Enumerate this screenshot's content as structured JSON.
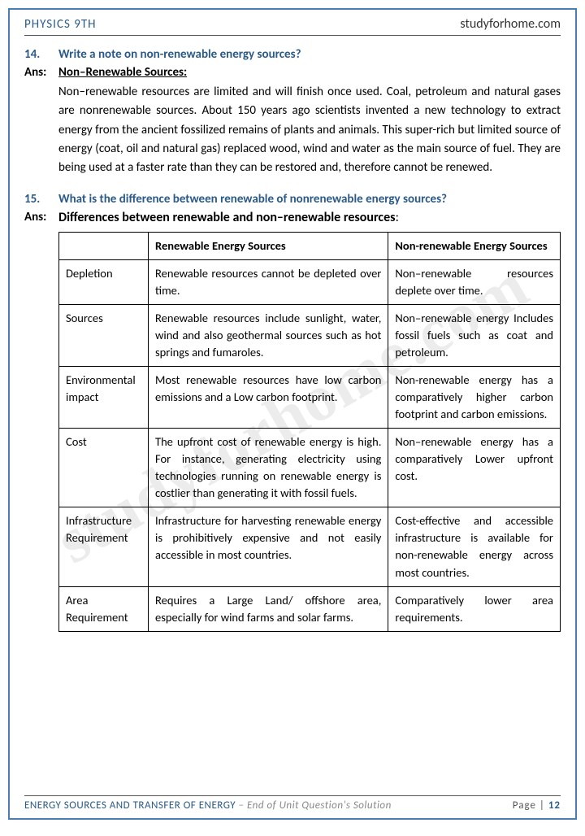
{
  "header": {
    "left": "PHYSICS 9TH",
    "right": "studyforhome.com"
  },
  "watermark": "studyforhome.com",
  "q14": {
    "num": "14.",
    "question": "Write a note on non-renewable energy sources?",
    "ans_label": "Ans:",
    "heading": "Non–Renewable Sources:",
    "body": "Non–renewable resources are limited and will finish once used. Coal, petroleum and natural gases are nonrenewable sources. About 150 years ago scientists invented a new technology to extract energy from the ancient fossilized remains of plants and animals. This super-rich but limited source of energy (coat, oil and natural gas) replaced wood, wind and water as the main source of fuel. They are being used at a faster rate than they can be restored and, therefore cannot be renewed."
  },
  "q15": {
    "num": "15.",
    "question": "What is the difference between renewable of nonrenewable energy sources?",
    "ans_label": "Ans:",
    "heading": "Differences between renewable and non–renewable resources",
    "columns": [
      "",
      "Renewable Energy Sources",
      "Non-renewable Energy Sources"
    ],
    "rows": [
      {
        "label": "Depletion",
        "c1": "Renewable resources cannot be depleted over time.",
        "c2": "Non–renewable resources deplete over time."
      },
      {
        "label": "Sources",
        "c1": "Renewable resources include sunlight, water, wind and also geothermal sources such as hot springs and fumaroles.",
        "c2": "Non–renewable energy Includes fossil fuels such as coat and petroleum."
      },
      {
        "label": "Environmental impact",
        "c1": "Most renewable resources have low carbon emissions and a Low carbon footprint.",
        "c2": "Non-renewable energy has a comparatively higher carbon footprint and carbon emissions."
      },
      {
        "label": "Cost",
        "c1": "The upfront cost of renewable energy is high. For instance, generating electricity using technologies running on renewable energy is costlier than generating it with fossil fuels.",
        "c2": "Non–renewable energy has a comparatively Lower upfront cost."
      },
      {
        "label": "Infrastructure Requirement",
        "c1": "Infrastructure for harvesting renewable energy is prohibitively expensive and not easily accessible in most countries.",
        "c2": "Cost-effective and accessible infrastructure is available for non-renewable energy across most countries."
      },
      {
        "label": "Area Requirement",
        "c1": "Requires a Large Land/ offshore area, especially for wind farms and solar farms.",
        "c2": "Comparatively lower area requirements."
      }
    ]
  },
  "footer": {
    "title": "ENERGY SOURCES AND TRANSFER OF ENERGY",
    "sub": " – End of Unit Question's Solution",
    "page_label": "Page |",
    "page_num": "12"
  }
}
